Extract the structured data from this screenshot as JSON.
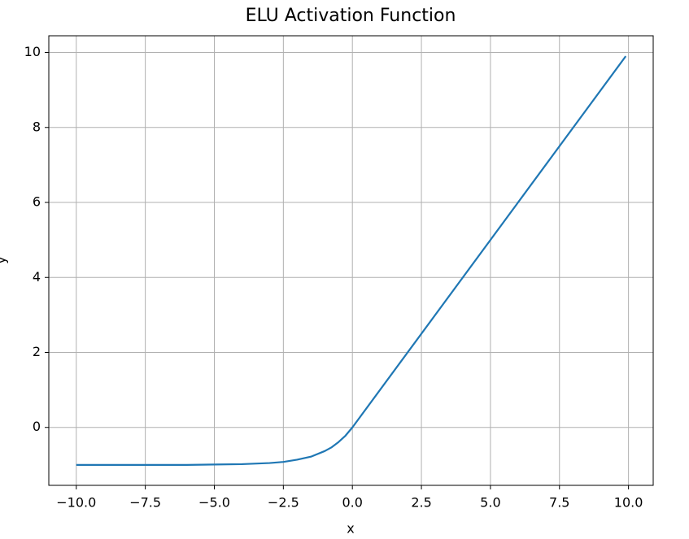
{
  "chart_data": {
    "type": "line",
    "title": "ELU Activation Function",
    "xlabel": "x",
    "ylabel": "y",
    "x": [
      -10,
      -9,
      -8,
      -7,
      -6,
      -5,
      -4,
      -3,
      -2.5,
      -2,
      -1.5,
      -1,
      -0.75,
      -0.5,
      -0.25,
      0,
      9.9
    ],
    "values": [
      -1.0,
      -1.0,
      -1.0,
      -1.0,
      -1.0,
      -0.99,
      -0.98,
      -0.95,
      -0.92,
      -0.86,
      -0.78,
      -0.63,
      -0.53,
      -0.39,
      -0.22,
      0,
      9.9
    ],
    "color": "#1f77b4",
    "xlim": [
      -10.995,
      10.895
    ],
    "ylim": [
      -1.545,
      10.445
    ],
    "xticks": [
      {
        "value": -10,
        "label": "−10.0"
      },
      {
        "value": -7.5,
        "label": "−7.5"
      },
      {
        "value": -5,
        "label": "−5.0"
      },
      {
        "value": -2.5,
        "label": "−2.5"
      },
      {
        "value": 0,
        "label": "0.0"
      },
      {
        "value": 2.5,
        "label": "2.5"
      },
      {
        "value": 5,
        "label": "5.0"
      },
      {
        "value": 7.5,
        "label": "7.5"
      },
      {
        "value": 10,
        "label": "10.0"
      }
    ],
    "yticks": [
      0,
      2,
      4,
      6,
      8,
      10
    ],
    "grid": true
  }
}
